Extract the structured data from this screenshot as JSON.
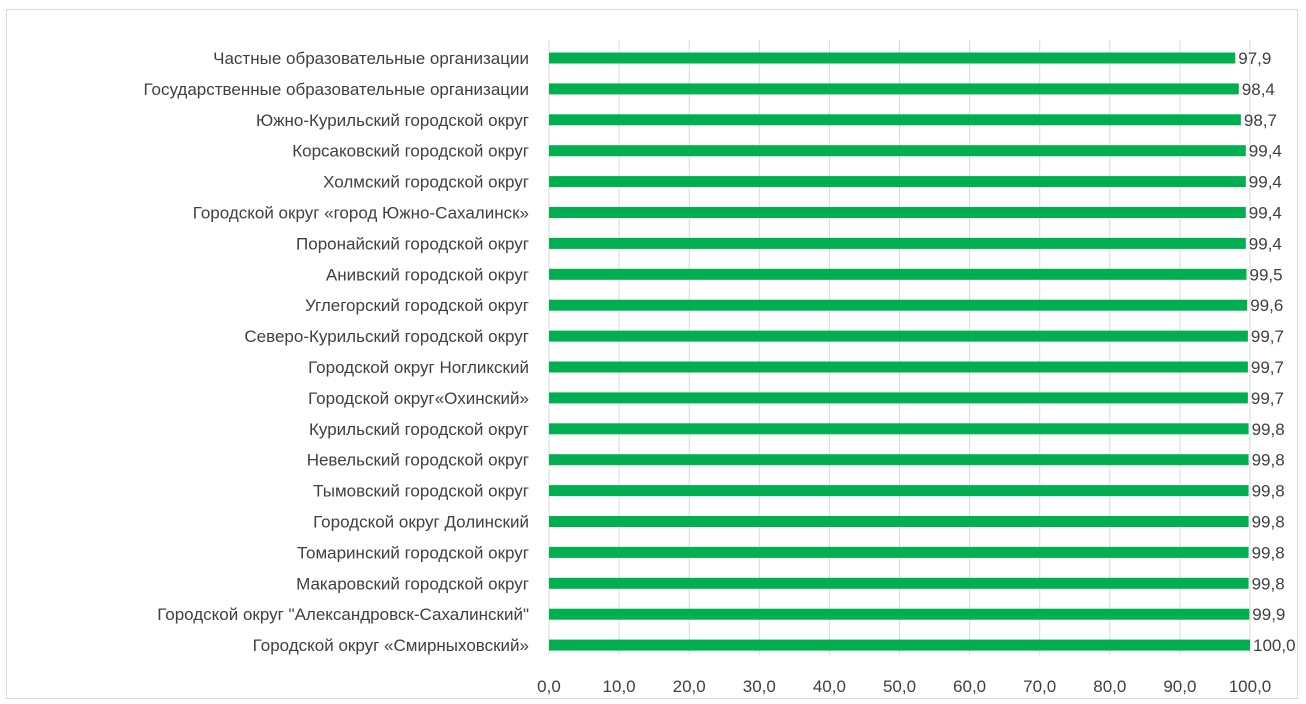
{
  "chart_data": {
    "type": "bar",
    "orientation": "horizontal",
    "title": "",
    "xlabel": "",
    "ylabel": "",
    "xlim": [
      0,
      100
    ],
    "x_ticks": [
      "0,0",
      "10,0",
      "20,0",
      "30,0",
      "40,0",
      "50,0",
      "60,0",
      "70,0",
      "80,0",
      "90,0",
      "100,0"
    ],
    "grid": true,
    "bar_color": "#00b050",
    "categories": [
      "Частные образовательные организации",
      "Государственные образовательные организации",
      "Южно-Курильский городской округ",
      "Корсаковский городской округ",
      "Холмский городской округ",
      "Городской округ «город Южно-Сахалинск»",
      "Поронайский городской округ",
      "Анивский городской округ",
      "Углегорский городской округ",
      "Северо-Курильский городской округ",
      "Городской округ Ногликский",
      "Городской округ«Охинский»",
      "Курильский городской округ",
      "Невельский городской округ",
      "Тымовский городской округ",
      "Городской округ Долинский",
      "Томаринский городской округ",
      "Макаровский городской округ",
      "Городской округ \"Александровск-Сахалинский\"",
      "Городской округ «Смирныховский»"
    ],
    "values": [
      97.9,
      98.4,
      98.7,
      99.4,
      99.4,
      99.4,
      99.4,
      99.5,
      99.6,
      99.7,
      99.7,
      99.7,
      99.8,
      99.8,
      99.8,
      99.8,
      99.8,
      99.8,
      99.9,
      100.0
    ],
    "value_labels": [
      "97,9",
      "98,4",
      "98,7",
      "99,4",
      "99,4",
      "99,4",
      "99,4",
      "99,5",
      "99,6",
      "99,7",
      "99,7",
      "99,7",
      "99,8",
      "99,8",
      "99,8",
      "99,8",
      "99,8",
      "99,8",
      "99,9",
      "100,0"
    ]
  }
}
